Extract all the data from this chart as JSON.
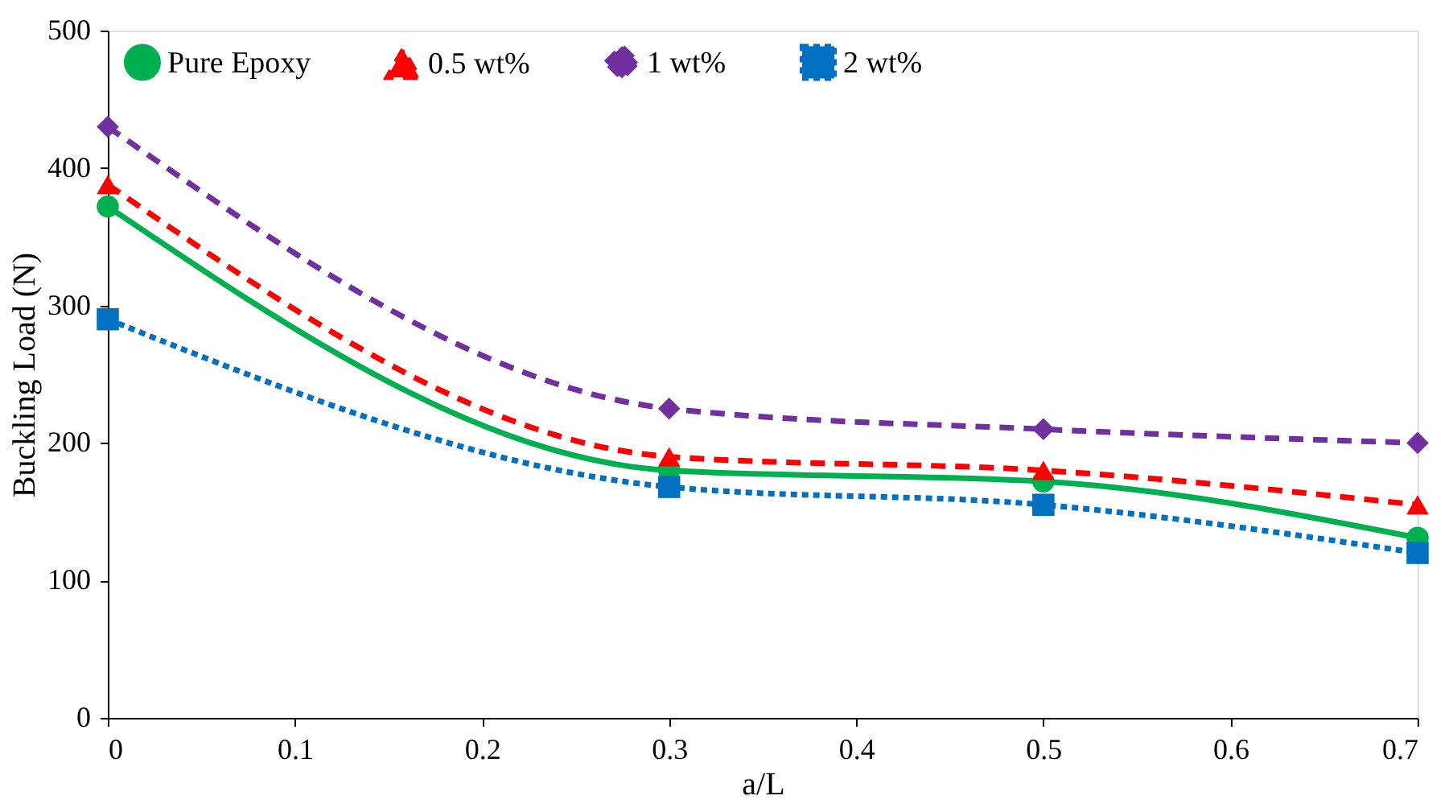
{
  "chart_data": {
    "type": "line",
    "xlabel": "a/L",
    "ylabel": "Buckling Load (N)",
    "x": [
      0,
      0.3,
      0.5,
      0.7
    ],
    "xlim": [
      0,
      0.7
    ],
    "xticks": [
      0,
      0.1,
      0.2,
      0.3,
      0.4,
      0.5,
      0.6,
      0.7
    ],
    "ylim": [
      0,
      500
    ],
    "yticks": [
      0,
      100,
      200,
      300,
      400,
      500
    ],
    "grid": false,
    "legend": "top",
    "series": [
      {
        "name": "Pure Epoxy",
        "color": "#00b050",
        "marker": "circle",
        "line_style": "solid",
        "values": [
          372,
          180,
          172,
          131
        ]
      },
      {
        "name": "0.5 wt%",
        "color": "#ff0000",
        "marker": "triangle",
        "line_style": "dashed",
        "values": [
          388,
          190,
          180,
          155
        ]
      },
      {
        "name": "1 wt%",
        "color": "#7030a0",
        "marker": "diamond",
        "line_style": "dashed",
        "values": [
          430,
          225,
          210,
          200
        ]
      },
      {
        "name": "2 wt%",
        "color": "#0070c0",
        "marker": "square",
        "line_style": "dotted",
        "values": [
          290,
          168,
          155,
          120
        ]
      }
    ]
  }
}
